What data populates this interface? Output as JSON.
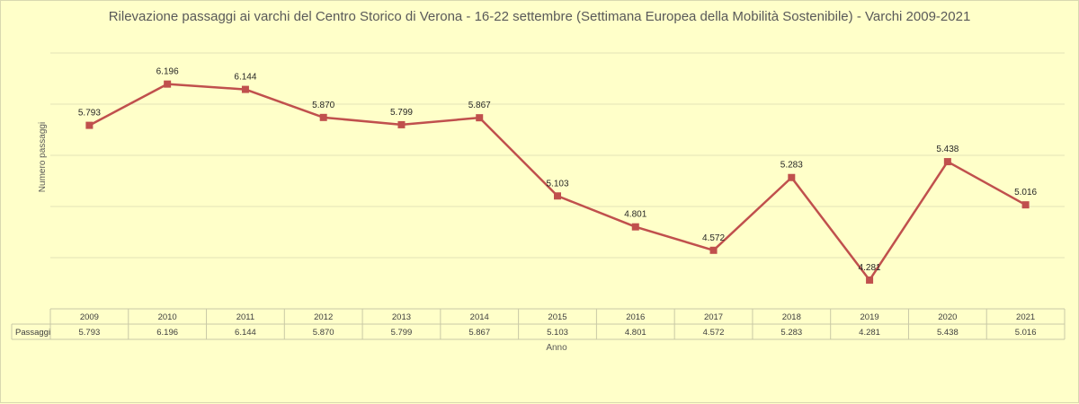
{
  "chart_data": {
    "type": "line",
    "title": "Rilevazione passaggi ai varchi del Centro Storico di Verona - 16-22 settembre (Settimana Europea della Mobilità Sostenibile) - Varchi 2009-2021",
    "xlabel": "Anno",
    "ylabel": "Numero passaggi",
    "categories": [
      "2009",
      "2010",
      "2011",
      "2012",
      "2013",
      "2014",
      "2015",
      "2016",
      "2017",
      "2018",
      "2019",
      "2020",
      "2021"
    ],
    "series": [
      {
        "name": "Passaggi",
        "values": [
          5793,
          6196,
          6144,
          5870,
          5799,
          5867,
          5103,
          4801,
          4572,
          5283,
          4281,
          5438,
          5016
        ],
        "labels": [
          "5.793",
          "6.196",
          "6.144",
          "5.870",
          "5.799",
          "5.867",
          "5.103",
          "4.801",
          "4.572",
          "5.283",
          "4.281",
          "5.438",
          "5.016"
        ],
        "color": "#c0504d"
      }
    ],
    "ylim": [
      4000,
      6500
    ],
    "grid": true,
    "data_table": true
  }
}
